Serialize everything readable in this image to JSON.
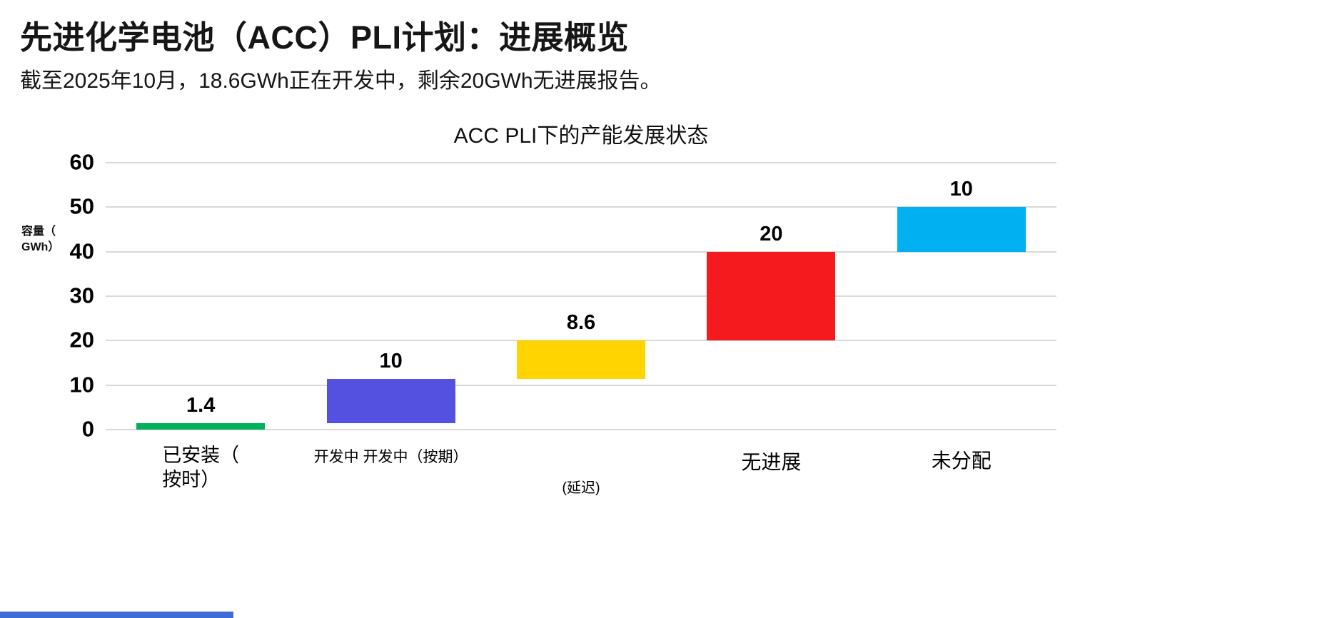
{
  "page": {
    "title": "先进化学电池（ACC）PLI计划：进展概览",
    "subtitle": "截至2025年10月，18.6GWh正在开发中，剩余20GWh无进展报告。"
  },
  "footer": {
    "accent_color": "#3e6bd6"
  },
  "chart_data": {
    "type": "bar",
    "variant": "waterfall",
    "title": "ACC PLI下的产能发展状态",
    "ylabel": "容量（GWh）",
    "ylabel_lines": [
      "容量（",
      "GWh）"
    ],
    "xlabel": "",
    "ylim": [
      0,
      60
    ],
    "yticks": [
      60,
      50,
      40,
      30,
      20,
      10,
      0
    ],
    "grid": true,
    "legend_position": "none",
    "categories": [
      "已安装（按时）",
      "开发中 开发中（按期）",
      "(延迟)",
      "无进展",
      "未分配"
    ],
    "gridline_color": "#d9d9d9",
    "bars": [
      {
        "category_lines": [
          "已安装（",
          "按时）"
        ],
        "start": 0,
        "value": 1.4,
        "end": 1.4,
        "data_label": "1.4",
        "color": "#00b159"
      },
      {
        "category_lines": [
          "开发中 开发中（按期）"
        ],
        "start": 1.4,
        "value": 10,
        "end": 11.4,
        "data_label": "10",
        "color": "#5551e0"
      },
      {
        "category_lines": [
          "(延迟)"
        ],
        "start": 11.4,
        "value": 8.6,
        "end": 20,
        "data_label": "8.6",
        "color": "#ffd400"
      },
      {
        "category_lines": [
          "无进展"
        ],
        "start": 20,
        "value": 20,
        "end": 40,
        "data_label": "20",
        "color": "#f41a1e"
      },
      {
        "category_lines": [
          "未分配"
        ],
        "start": 40,
        "value": 10,
        "end": 50,
        "data_label": "10",
        "color": "#00b0f0"
      }
    ]
  }
}
